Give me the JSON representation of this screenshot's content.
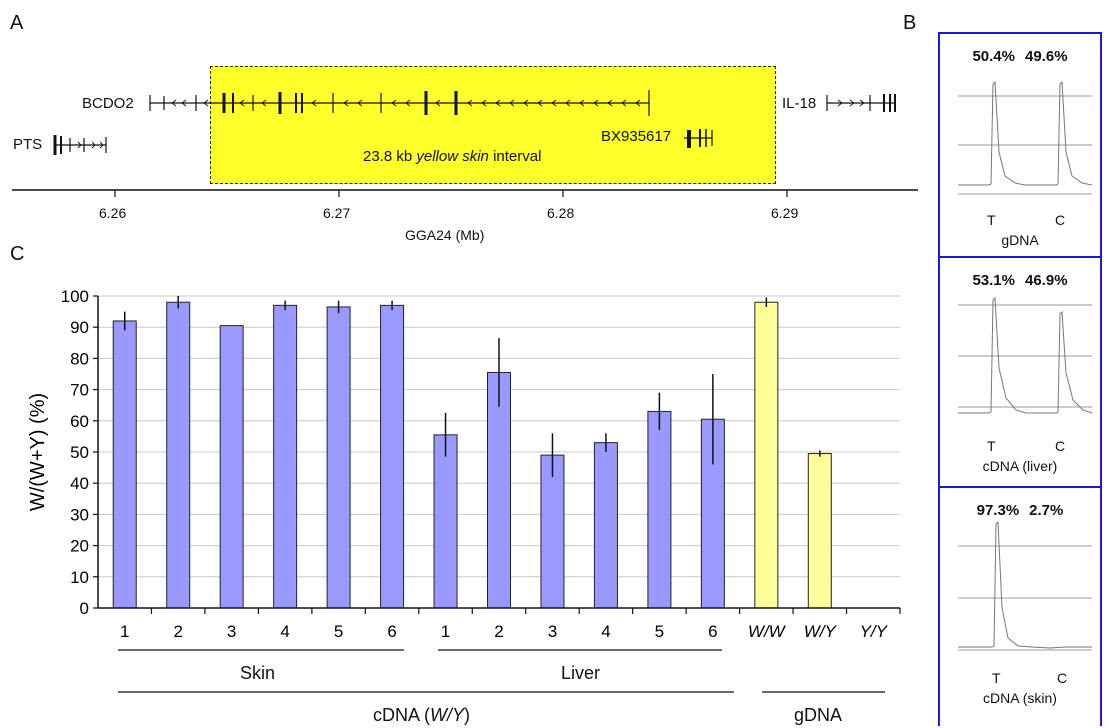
{
  "panel_labels": {
    "a": "A",
    "b": "B",
    "c": "C"
  },
  "panel_a": {
    "genes": {
      "bcdo2": "BCDO2",
      "pts": "PTS",
      "il18": "IL-18",
      "bx": "BX935617"
    },
    "interval_prefix": "23.8 kb ",
    "interval_italic": "yellow skin",
    "interval_suffix": " interval",
    "ticks": [
      "6.26",
      "6.27",
      "6.28",
      "6.29"
    ],
    "axis_label": "GGA24 (Mb)"
  },
  "panel_b": [
    {
      "t_pct": "50.4%",
      "c_pct": "49.6%",
      "t": "T",
      "c": "C",
      "caption": "gDNA"
    },
    {
      "t_pct": "53.1%",
      "c_pct": "46.9%",
      "t": "T",
      "c": "C",
      "caption": "cDNA (liver)"
    },
    {
      "t_pct": "97.3%",
      "c_pct": "2.7%",
      "t": "T",
      "c": "C",
      "caption": "cDNA (skin)"
    }
  ],
  "group_labels": {
    "skin": "Skin",
    "liver": "Liver",
    "cdna_prefix": "cDNA (",
    "cdna_italic": "W/Y",
    "cdna_suffix": ")",
    "gdna": "gDNA"
  },
  "colors": {
    "cdna_bar": "#9999ff",
    "gdna_bar": "#ffff99",
    "interval": "#ffff2a",
    "panel_b_border": "#1a1ae0"
  },
  "chart_data": {
    "type": "bar",
    "ylabel": "W/(W+Y) (%)",
    "ylim": [
      0,
      100
    ],
    "yticks": [
      0,
      10,
      20,
      30,
      40,
      50,
      60,
      70,
      80,
      90,
      100
    ],
    "grid": true,
    "categories": [
      "1",
      "2",
      "3",
      "4",
      "5",
      "6",
      "1",
      "2",
      "3",
      "4",
      "5",
      "6",
      "W/W",
      "W/Y",
      "Y/Y"
    ],
    "groups": [
      "Skin",
      "Skin",
      "Skin",
      "Skin",
      "Skin",
      "Skin",
      "Liver",
      "Liver",
      "Liver",
      "Liver",
      "Liver",
      "Liver",
      "gDNA",
      "gDNA",
      "gDNA"
    ],
    "values": [
      92,
      98,
      90.5,
      97,
      96.5,
      97,
      55.5,
      75.5,
      49,
      53,
      63,
      60.5,
      98,
      49.5,
      0
    ],
    "errors": [
      3,
      2,
      0,
      1.5,
      2,
      1.5,
      7,
      11,
      7,
      3,
      6,
      14.5,
      1.5,
      1,
      0
    ]
  }
}
